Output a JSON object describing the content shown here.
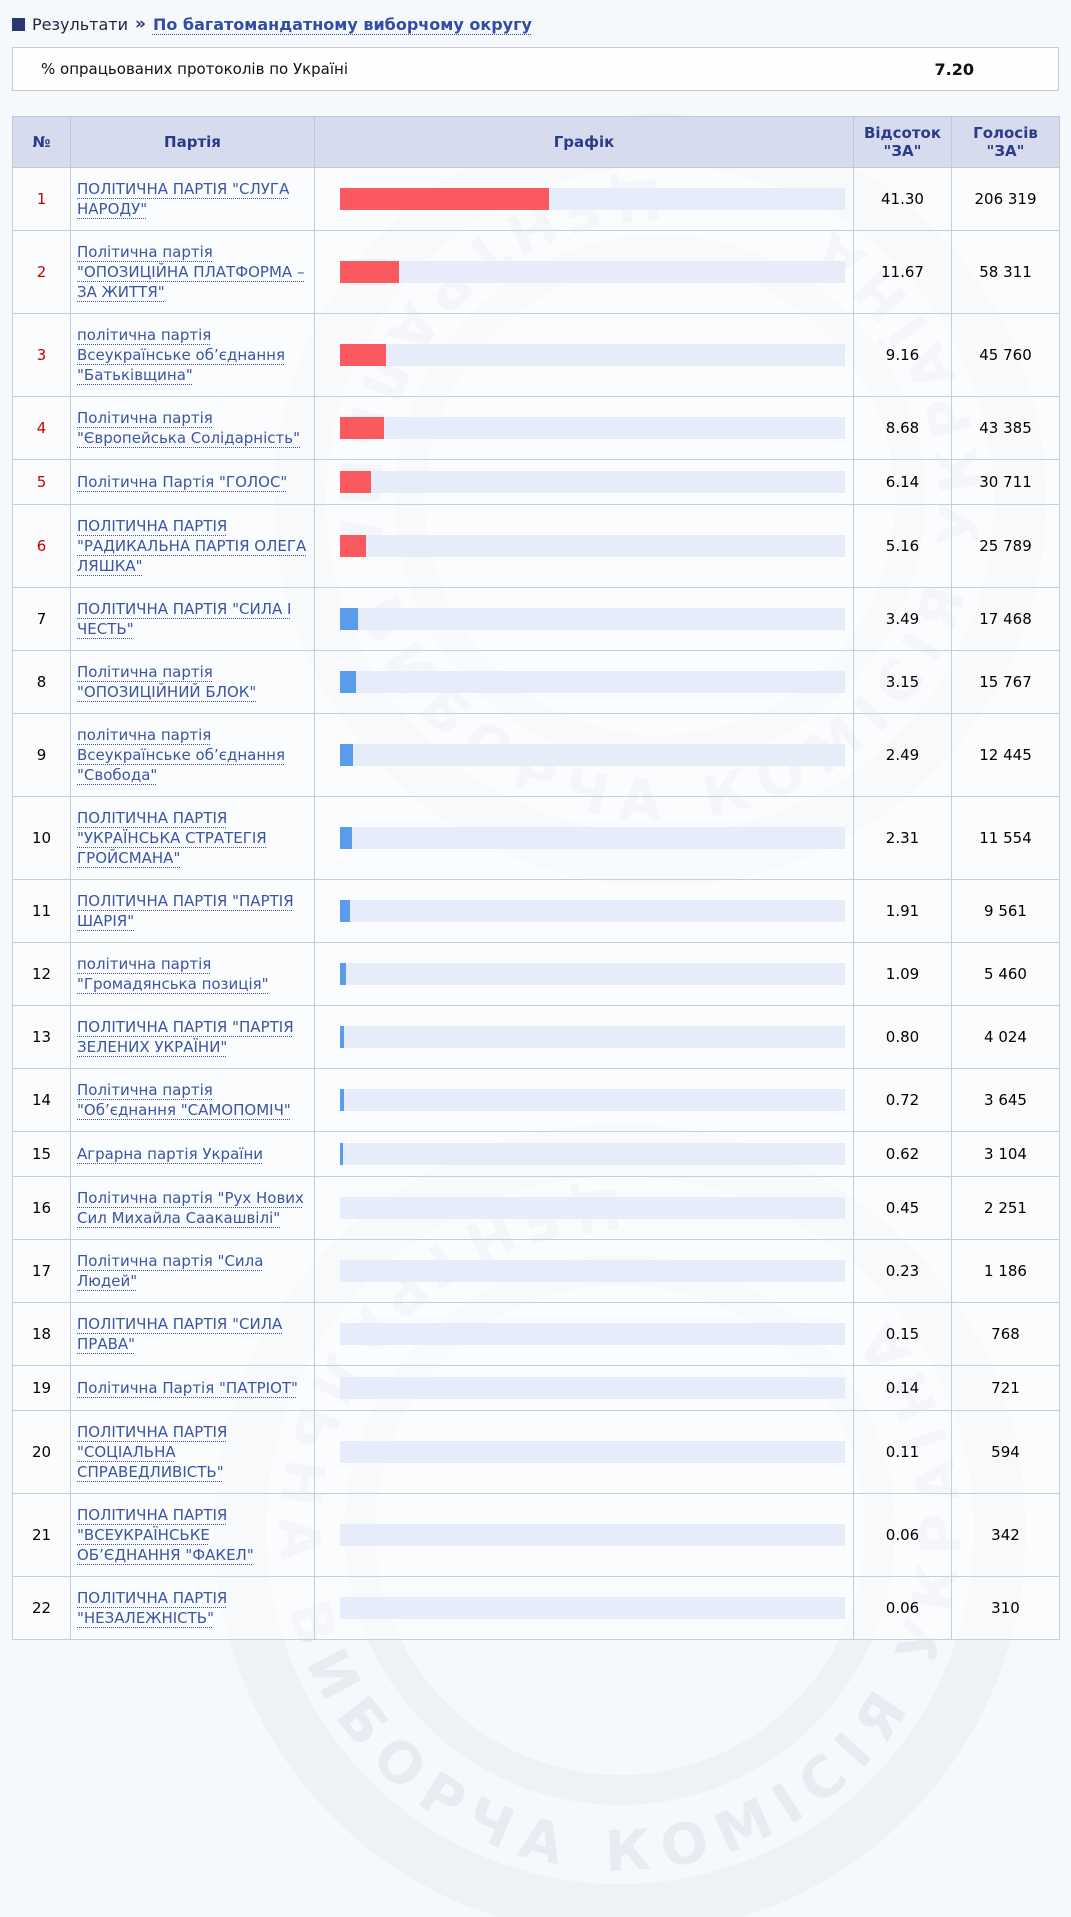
{
  "breadcrumb": {
    "section": "Результати",
    "separator": "»",
    "current": "По багатомандатному виборчому округу"
  },
  "protocols_bar": {
    "label": "% опрацьованих протоколів по Україні",
    "value": "7.20"
  },
  "watermark": {
    "text": "ЦЕНТРАЛЬНА ВИБОРЧА КОМІСІЯ УКРАЇНА"
  },
  "colors": {
    "bar_passed": "#fa5a5f",
    "bar_other": "#5a9beb",
    "bar_track": "#e7ecfb",
    "passed_number": "#cc0000",
    "pass_threshold": 5
  },
  "table": {
    "headers": {
      "num": "№",
      "party": "Партія",
      "chart": "Графік",
      "percent": "Відсоток\n\"ЗА\"",
      "votes": "Голосів\n\"ЗА\""
    },
    "rows": [
      {
        "num": "1",
        "party": "ПОЛІТИЧНА ПАРТІЯ \"СЛУГА НАРОДУ\"",
        "pct": 41.3,
        "percent": "41.30",
        "votes": "206 319"
      },
      {
        "num": "2",
        "party": "Політична партія \"ОПОЗИЦІЙНА ПЛАТФОРМА – ЗА ЖИТТЯ\"",
        "pct": 11.67,
        "percent": "11.67",
        "votes": "58 311"
      },
      {
        "num": "3",
        "party": "політична партія Всеукраїнське об’єднання \"Батьківщина\"",
        "pct": 9.16,
        "percent": "9.16",
        "votes": "45 760"
      },
      {
        "num": "4",
        "party": "Політична партія \"Європейська Солідарність\"",
        "pct": 8.68,
        "percent": "8.68",
        "votes": "43 385"
      },
      {
        "num": "5",
        "party": "Політична Партія \"ГОЛОС\"",
        "pct": 6.14,
        "percent": "6.14",
        "votes": "30 711"
      },
      {
        "num": "6",
        "party": "ПОЛІТИЧНА ПАРТІЯ \"РАДИКАЛЬНА ПАРТІЯ ОЛЕГА ЛЯШКА\"",
        "pct": 5.16,
        "percent": "5.16",
        "votes": "25 789"
      },
      {
        "num": "7",
        "party": "ПОЛІТИЧНА ПАРТІЯ \"СИЛА І ЧЕСТЬ\"",
        "pct": 3.49,
        "percent": "3.49",
        "votes": "17 468"
      },
      {
        "num": "8",
        "party": "Політична партія \"ОПОЗИЦІЙНИЙ БЛОК\"",
        "pct": 3.15,
        "percent": "3.15",
        "votes": "15 767"
      },
      {
        "num": "9",
        "party": "політична партія Всеукраїнське об’єднання \"Свобода\"",
        "pct": 2.49,
        "percent": "2.49",
        "votes": "12 445"
      },
      {
        "num": "10",
        "party": "ПОЛІТИЧНА ПАРТІЯ \"УКРАЇНСЬКА СТРАТЕГІЯ ГРОЙСМАНА\"",
        "pct": 2.31,
        "percent": "2.31",
        "votes": "11 554"
      },
      {
        "num": "11",
        "party": "ПОЛІТИЧНА ПАРТІЯ \"ПАРТІЯ ШАРІЯ\"",
        "pct": 1.91,
        "percent": "1.91",
        "votes": "9 561"
      },
      {
        "num": "12",
        "party": "політична партія \"Громадянська позиція\"",
        "pct": 1.09,
        "percent": "1.09",
        "votes": "5 460"
      },
      {
        "num": "13",
        "party": "ПОЛІТИЧНА ПАРТІЯ \"ПАРТІЯ ЗЕЛЕНИХ УКРАЇНИ\"",
        "pct": 0.8,
        "percent": "0.80",
        "votes": "4 024"
      },
      {
        "num": "14",
        "party": "Політична партія \"Об’єднання \"САМОПОМІЧ\"",
        "pct": 0.72,
        "percent": "0.72",
        "votes": "3 645"
      },
      {
        "num": "15",
        "party": "Аграрна партія України",
        "pct": 0.62,
        "percent": "0.62",
        "votes": "3 104"
      },
      {
        "num": "16",
        "party": "Політична партія \"Рух Нових Сил Михайла Саакашвілі\"",
        "pct": 0.45,
        "percent": "0.45",
        "votes": "2 251"
      },
      {
        "num": "17",
        "party": "Політична партія \"Сила Людей\"",
        "pct": 0.23,
        "percent": "0.23",
        "votes": "1 186"
      },
      {
        "num": "18",
        "party": "ПОЛІТИЧНА ПАРТІЯ \"СИЛА ПРАВА\"",
        "pct": 0.15,
        "percent": "0.15",
        "votes": "768"
      },
      {
        "num": "19",
        "party": "Політична Партія \"ПАТРІОТ\"",
        "pct": 0.14,
        "percent": "0.14",
        "votes": "721"
      },
      {
        "num": "20",
        "party": "ПОЛІТИЧНА ПАРТІЯ \"СОЦІАЛЬНА СПРАВЕДЛИВІСТЬ\"",
        "pct": 0.11,
        "percent": "0.11",
        "votes": "594"
      },
      {
        "num": "21",
        "party": "ПОЛІТИЧНА ПАРТІЯ \"ВСЕУКРАЇНСЬКЕ ОБ’ЄДНАННЯ \"ФАКЕЛ\"",
        "pct": 0.06,
        "percent": "0.06",
        "votes": "342"
      },
      {
        "num": "22",
        "party": "ПОЛІТИЧНА ПАРТІЯ \"НЕЗАЛЕЖНІСТЬ\"",
        "pct": 0.06,
        "percent": "0.06",
        "votes": "310"
      }
    ]
  }
}
